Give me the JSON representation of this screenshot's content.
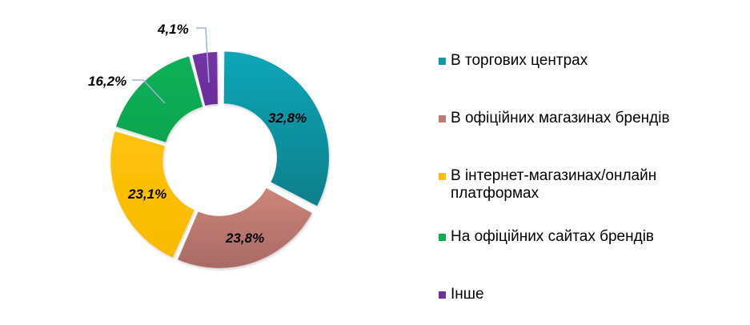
{
  "chart_data": {
    "type": "pie",
    "subtype": "donut",
    "title": "",
    "categories": [
      "В торгових центрах",
      "В офіційних магазинах брендів",
      "В інтернет-магазинах/онлайн платформах",
      "На офіційних сайтах брендів",
      "Інше"
    ],
    "values": [
      32.8,
      23.8,
      23.1,
      16.2,
      4.1
    ],
    "value_labels": [
      "32,8%",
      "23,8%",
      "23,1%",
      "16,2%",
      "4,1%"
    ],
    "colors": [
      "#0e9aa7",
      "#c0796f",
      "#fdbf00",
      "#0fae54",
      "#7030a0"
    ],
    "legend_position": "right",
    "unit": "%"
  },
  "legend": {
    "items": [
      {
        "label": "В торгових центрах",
        "color": "#0e9aa7"
      },
      {
        "label": "В офіційних магазинах брендів",
        "color": "#c0796f"
      },
      {
        "label": "В інтернет-магазинах/онлайн платформах",
        "color": "#fdbf00"
      },
      {
        "label": "На офіційних сайтах брендів",
        "color": "#0fae54"
      },
      {
        "label": "Інше",
        "color": "#7030a0"
      }
    ]
  }
}
